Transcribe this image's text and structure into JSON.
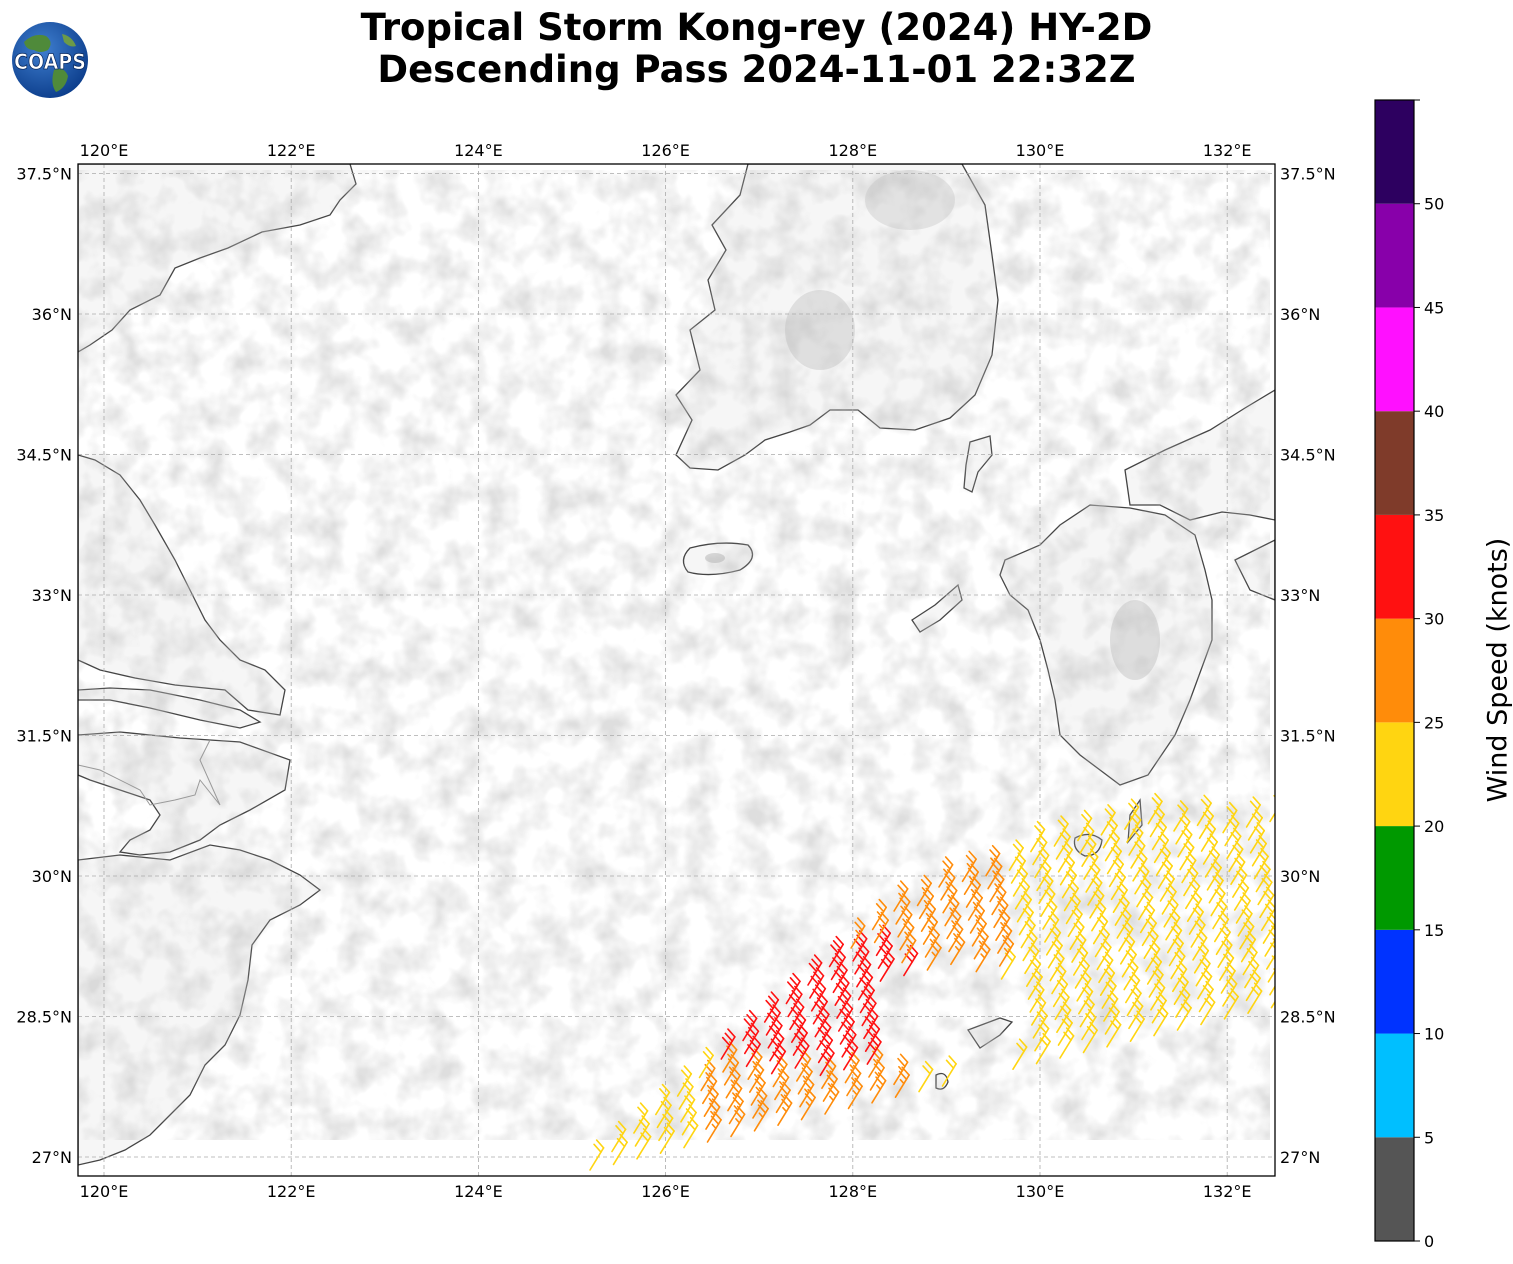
{
  "title": {
    "line1": "Tropical Storm Kong-rey (2024) HY-2D",
    "line2": "Descending Pass 2024-11-01 22:32Z"
  },
  "logo": {
    "text": "COAPS",
    "icon": "globe-logo-icon"
  },
  "map": {
    "lon_labels": [
      "120°E",
      "122°E",
      "124°E",
      "126°E",
      "128°E",
      "130°E",
      "132°E"
    ],
    "lat_labels": [
      "37.5°N",
      "36°N",
      "34.5°N",
      "33°N",
      "31.5°N",
      "30°N",
      "28.5°N",
      "27°N"
    ],
    "gridlines": true
  },
  "colorbar": {
    "label": "Wind Speed (knots)",
    "ticks": [
      "0",
      "5",
      "10",
      "15",
      "20",
      "25",
      "30",
      "35",
      "40",
      "45",
      "50"
    ],
    "bins": [
      {
        "min": 0,
        "max": 5,
        "color": "#555555"
      },
      {
        "min": 5,
        "max": 10,
        "color": "#00bfff"
      },
      {
        "min": 10,
        "max": 15,
        "color": "#0033ff"
      },
      {
        "min": 15,
        "max": 20,
        "color": "#009900"
      },
      {
        "min": 20,
        "max": 25,
        "color": "#ffd511"
      },
      {
        "min": 25,
        "max": 30,
        "color": "#ff8c0a"
      },
      {
        "min": 30,
        "max": 35,
        "color": "#ff1111"
      },
      {
        "min": 35,
        "max": 40,
        "color": "#7f3b2a"
      },
      {
        "min": 40,
        "max": 45,
        "color": "#ff10ff"
      },
      {
        "min": 45,
        "max": 50,
        "color": "#8800aa"
      },
      {
        "min": 50,
        "max": 55,
        "color": "#2d0060"
      }
    ]
  }
}
